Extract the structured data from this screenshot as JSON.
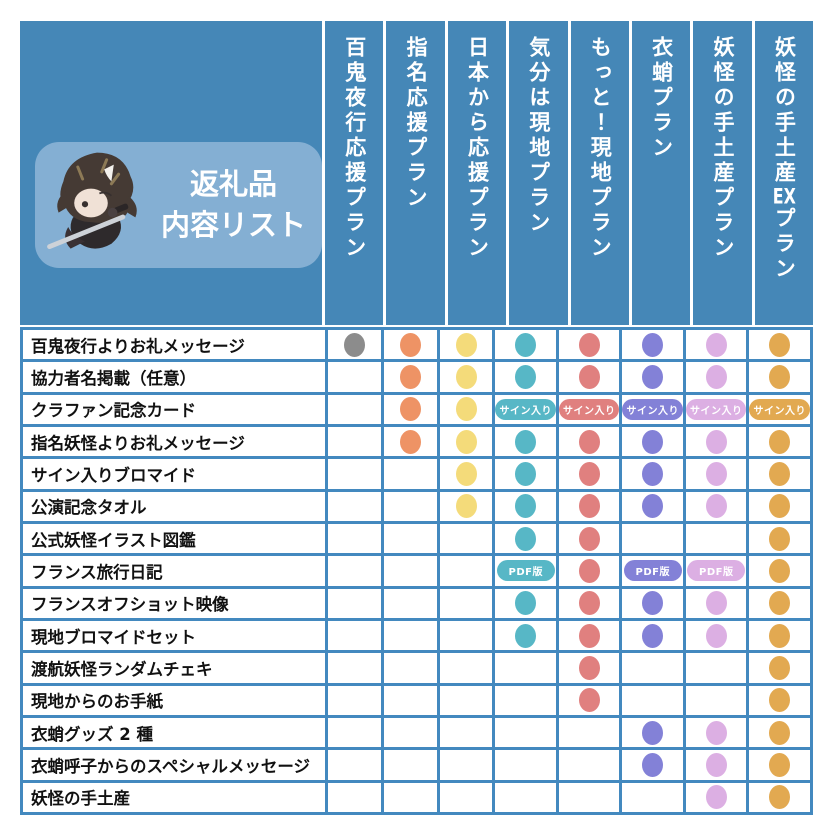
{
  "header": {
    "title_line1": "返礼品",
    "title_line2": "内容リスト",
    "mascot": "chibi-yokai-character-with-katana"
  },
  "badge_labels": {
    "signed": "サイン入り",
    "pdf": "PDF版"
  },
  "colors": {
    "background_blue": "#4587b7",
    "grid_border_blue": "#4389bf",
    "title_box_blue": "#84afd3",
    "plan_colors": [
      "#8c8c8c",
      "#ee9365",
      "#f4db7a",
      "#57b7c6",
      "#e0807f",
      "#8381d7",
      "#dcafe3",
      "#e2a951"
    ]
  },
  "chart_data": {
    "type": "table",
    "title": "返礼品内容リスト",
    "columns": [
      "百鬼夜行応援プラン",
      "指名応援プラン",
      "日本から応援プラン",
      "気分は現地プラン",
      "もっと！現地プラン",
      "衣蛸プラン",
      "妖怪の手土産プラン",
      "妖怪の手土産EXプラン"
    ],
    "rows": [
      "百鬼夜行よりお礼メッセージ",
      "協力者名掲載（任意）",
      "クラファン記念カード",
      "指名妖怪よりお礼メッセージ",
      "サイン入りブロマイド",
      "公演記念タオル",
      "公式妖怪イラスト図鑑",
      "フランス旅行日記",
      "フランスオフショット映像",
      "現地ブロマイドセット",
      "渡航妖怪ランダムチェキ",
      "現地からのお手紙",
      "衣蛸グッズ 2 種",
      "衣蛸呼子からのスペシャルメッセージ",
      "妖怪の手土産"
    ],
    "matrix": [
      [
        "dot",
        "dot",
        "dot",
        "dot",
        "dot",
        "dot",
        "dot",
        "dot"
      ],
      [
        "",
        "dot",
        "dot",
        "dot",
        "dot",
        "dot",
        "dot",
        "dot"
      ],
      [
        "",
        "dot",
        "dot",
        "signed",
        "signed",
        "signed",
        "signed",
        "signed"
      ],
      [
        "",
        "dot",
        "dot",
        "dot",
        "dot",
        "dot",
        "dot",
        "dot"
      ],
      [
        "",
        "",
        "dot",
        "dot",
        "dot",
        "dot",
        "dot",
        "dot"
      ],
      [
        "",
        "",
        "dot",
        "dot",
        "dot",
        "dot",
        "dot",
        "dot"
      ],
      [
        "",
        "",
        "",
        "dot",
        "dot",
        "",
        "",
        "dot"
      ],
      [
        "",
        "",
        "",
        "pdf",
        "dot",
        "pdf",
        "pdf",
        "dot"
      ],
      [
        "",
        "",
        "",
        "dot",
        "dot",
        "dot",
        "dot",
        "dot"
      ],
      [
        "",
        "",
        "",
        "dot",
        "dot",
        "dot",
        "dot",
        "dot"
      ],
      [
        "",
        "",
        "",
        "",
        "dot",
        "",
        "",
        "dot"
      ],
      [
        "",
        "",
        "",
        "",
        "dot",
        "",
        "",
        "dot"
      ],
      [
        "",
        "",
        "",
        "",
        "",
        "dot",
        "dot",
        "dot"
      ],
      [
        "",
        "",
        "",
        "",
        "",
        "dot",
        "dot",
        "dot"
      ],
      [
        "",
        "",
        "",
        "",
        "",
        "",
        "dot",
        "dot"
      ]
    ],
    "legend": {
      "dot": "included",
      "signed": "included with サイン入り badge",
      "pdf": "included as PDF版 badge",
      "": "not included"
    }
  }
}
